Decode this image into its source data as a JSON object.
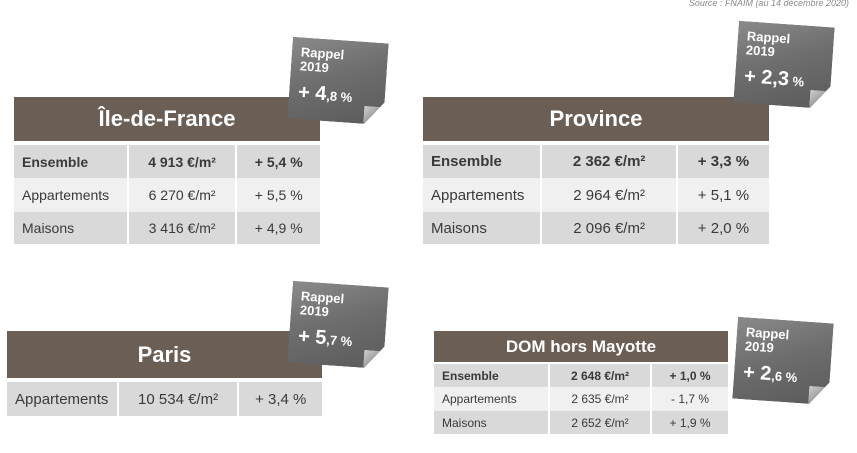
{
  "source": "Source : FNAIM (au 14 décembre 2020)",
  "colors": {
    "header_bg": "#6a5e55",
    "row_dark": "#d9d9d9",
    "row_light": "#f0f0f0",
    "rappel_bg": "#707070"
  },
  "idf": {
    "title": "Île-de-France",
    "rows": [
      {
        "label": "Ensemble",
        "price": "4 913 €/m²",
        "change": "+ 5,4 %"
      },
      {
        "label": "Appartements",
        "price": "6 270 €/m²",
        "change": "+ 5,5 %"
      },
      {
        "label": "Maisons",
        "price": "3 416 €/m²",
        "change": "+ 4,9 %"
      }
    ],
    "rappel": {
      "line1": "Rappel",
      "line2": "2019",
      "sign": "+ 4",
      "decimal": ",8 %"
    }
  },
  "province": {
    "title": "Province",
    "rows": [
      {
        "label": "Ensemble",
        "price": "2 362 €/m²",
        "change": "+ 3,3 %"
      },
      {
        "label": "Appartements",
        "price": "2 964 €/m²",
        "change": "+ 5,1 %"
      },
      {
        "label": "Maisons",
        "price": "2 096 €/m²",
        "change": "+ 2,0 %"
      }
    ],
    "rappel": {
      "line1": "Rappel",
      "line2": "2019",
      "sign": "+ 2,3",
      "decimal": " %"
    }
  },
  "paris": {
    "title": "Paris",
    "rows": [
      {
        "label": "Appartements",
        "price": "10 534 €/m²",
        "change": "+ 3,4 %"
      }
    ],
    "rappel": {
      "line1": "Rappel",
      "line2": "2019",
      "sign": "+ 5",
      "decimal": ",7 %"
    }
  },
  "dom": {
    "title": "DOM hors Mayotte",
    "rows": [
      {
        "label": "Ensemble",
        "price": "2 648 €/m²",
        "change": "+ 1,0 %"
      },
      {
        "label": "Appartements",
        "price": "2 635 €/m²",
        "change": "- 1,7 %"
      },
      {
        "label": "Maisons",
        "price": "2 652 €/m²",
        "change": "+ 1,9 %"
      }
    ],
    "rappel": {
      "line1": "Rappel",
      "line2": "2019",
      "sign": "+ 2",
      "decimal": ",6 %"
    }
  }
}
